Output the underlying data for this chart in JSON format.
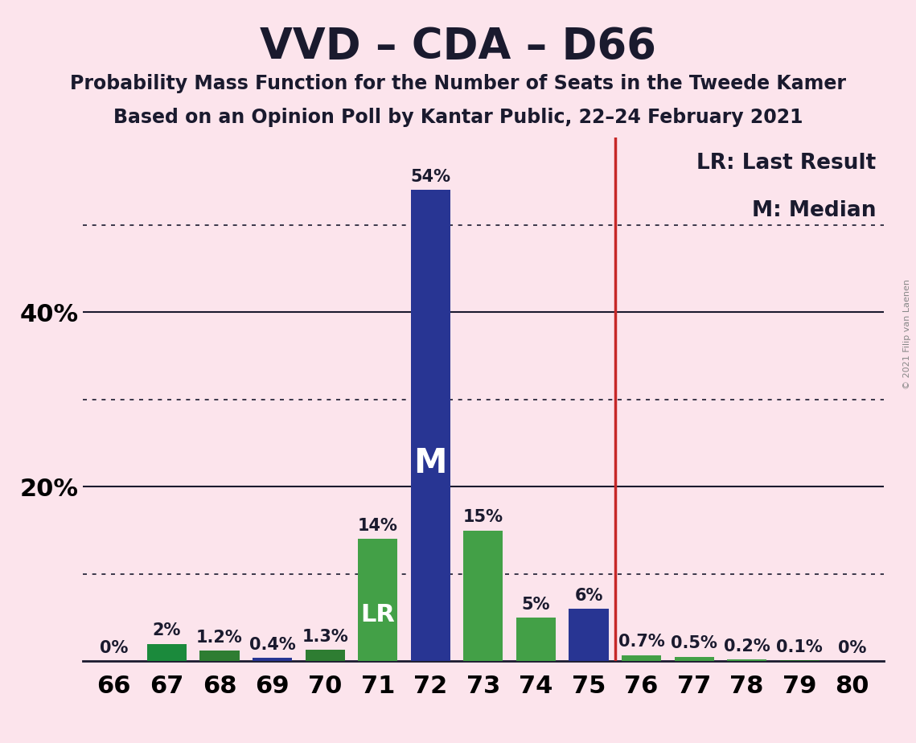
{
  "title": "VVD – CDA – D66",
  "subtitle1": "Probability Mass Function for the Number of Seats in the Tweede Kamer",
  "subtitle2": "Based on an Opinion Poll by Kantar Public, 22–24 February 2021",
  "copyright": "© 2021 Filip van Laenen",
  "legend_lr": "LR: Last Result",
  "legend_m": "M: Median",
  "categories": [
    66,
    67,
    68,
    69,
    70,
    71,
    72,
    73,
    74,
    75,
    76,
    77,
    78,
    79,
    80
  ],
  "values": [
    0,
    2,
    1.2,
    0.4,
    1.3,
    14,
    54,
    15,
    5,
    6,
    0.7,
    0.5,
    0.2,
    0.1,
    0
  ],
  "labels": [
    "0%",
    "2%",
    "1.2%",
    "0.4%",
    "1.3%",
    "14%",
    "54%",
    "15%",
    "5%",
    "6%",
    "0.7%",
    "0.5%",
    "0.2%",
    "0.1%",
    "0%"
  ],
  "median_seat": 72,
  "last_result_seat": 76,
  "bar_colors": [
    "#1b5e20",
    "#1b8a3c",
    "#2e7d32",
    "#283593",
    "#2e7d32",
    "#43a047",
    "#283593",
    "#43a047",
    "#43a047",
    "#283593",
    "#43a047",
    "#43a047",
    "#43a047",
    "#1b5e20",
    "#1b5e20"
  ],
  "background_color": "#fce4ec",
  "grid_color": "#1a1a2e",
  "lr_line_color": "#c62828",
  "ylim": [
    0,
    60
  ],
  "dotted_gridlines": [
    10,
    30,
    50
  ],
  "solid_gridlines": [
    20,
    40
  ],
  "solid_labels": [
    20,
    40
  ],
  "title_fontsize": 38,
  "subtitle_fontsize": 17,
  "axis_fontsize": 22,
  "label_fontsize": 15,
  "legend_fontsize": 19,
  "bar_width": 0.75
}
